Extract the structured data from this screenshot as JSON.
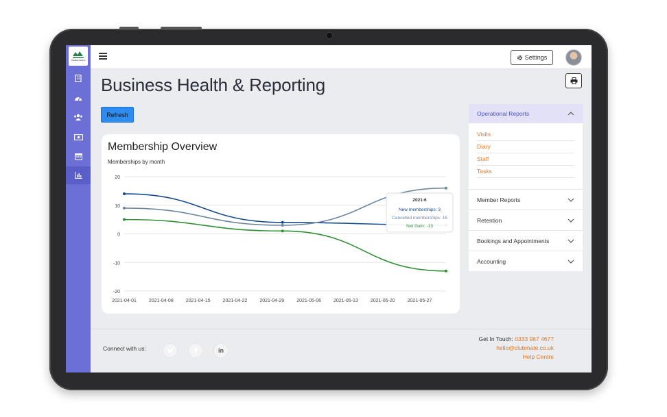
{
  "logo": {
    "text": "THREE PEAKS"
  },
  "topbar": {
    "settings_label": "Settings"
  },
  "page": {
    "title": "Business Health & Reporting",
    "refresh_label": "Refresh"
  },
  "card": {
    "title": "Membership Overview",
    "subtitle": "Memberships by month"
  },
  "chart_data": {
    "type": "line",
    "x": [
      "2021-04-01",
      "2021-04-08",
      "2021-04-15",
      "2021-04-22",
      "2021-04-29",
      "2021-05-06",
      "2021-05-13",
      "2021-05-20",
      "2021-05-27"
    ],
    "x_ticks_days": [
      0,
      7,
      14,
      21,
      28,
      35,
      42,
      49,
      56
    ],
    "ylim": [
      -20,
      20
    ],
    "yticks": [
      20,
      10,
      0,
      -10,
      -20
    ],
    "grid": true,
    "series": [
      {
        "name": "New memberships",
        "color": "#174a8b",
        "points": [
          [
            "2021-04-01",
            14
          ],
          [
            "2021-05-01",
            4
          ],
          [
            "2021-06-01",
            3
          ]
        ]
      },
      {
        "name": "Cancelled memberships",
        "color": "#6f86a0",
        "points": [
          [
            "2021-04-01",
            9
          ],
          [
            "2021-05-01",
            3
          ],
          [
            "2021-06-01",
            16
          ]
        ]
      },
      {
        "name": "Net Gain",
        "color": "#2e8f33",
        "points": [
          [
            "2021-04-01",
            5
          ],
          [
            "2021-05-01",
            1
          ],
          [
            "2021-06-01",
            -13
          ]
        ]
      }
    ],
    "tooltip": {
      "title": "2021-6",
      "lines": [
        "New memberships: 3",
        "Cancelled memberships: 16",
        "Net Gain: -13"
      ]
    }
  },
  "accordion": {
    "open_section": {
      "title": "Operational Reports",
      "links": [
        "Visits",
        "Diary",
        "Staff",
        "Tasks"
      ]
    },
    "sections": [
      "Member Reports",
      "Retention",
      "Bookings and Appointments",
      "Accounting"
    ]
  },
  "footer": {
    "connect_label": "Connect with us:",
    "get_in_touch_label": "Get In Touch:",
    "phone": "0333 987 4677",
    "email": "hello@clubmate.co.uk",
    "help": "Help Centre"
  },
  "colors": {
    "sidebar": "#6b6fd6",
    "accent": "#e07a28",
    "refresh": "#2e8bf0"
  },
  "icons": {
    "sidebar": [
      "building-icon",
      "dashboard-gauge-icon",
      "users-icon",
      "money-icon",
      "calendar-icon",
      "bar-chart-icon"
    ],
    "social": [
      "twitter-icon",
      "facebook-icon",
      "linkedin-icon"
    ]
  }
}
